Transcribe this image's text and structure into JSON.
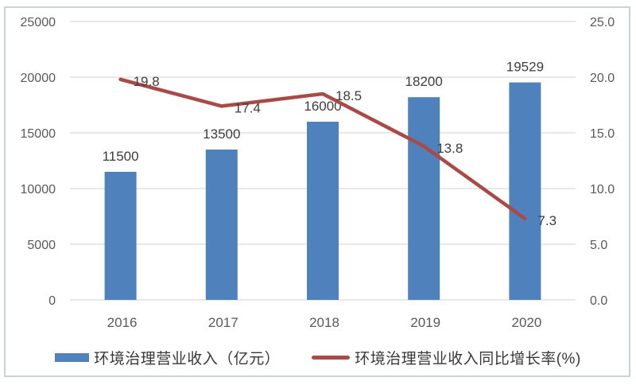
{
  "chart_data": {
    "type": "combo",
    "title": "",
    "categories": [
      "2016",
      "2017",
      "2018",
      "2019",
      "2020"
    ],
    "series": [
      {
        "name": "环境治理营业收入（亿元）",
        "type": "bar",
        "axis": "left",
        "color": "#4f81bd",
        "values": [
          11500,
          13500,
          16000,
          18200,
          19529
        ],
        "labels": [
          "11500",
          "13500",
          "16000",
          "18200",
          "19529"
        ]
      },
      {
        "name": "环境治理营业收入同比增长率(%)",
        "type": "line",
        "axis": "right",
        "color": "#aa4a47",
        "values": [
          19.8,
          17.4,
          18.5,
          13.8,
          7.3
        ],
        "labels": [
          "19.8",
          "17.4",
          "18.5",
          "13.8",
          "7.3"
        ]
      }
    ],
    "left_axis": {
      "min": 0,
      "max": 25000,
      "step": 5000,
      "tick_labels": [
        "0",
        "5000",
        "10000",
        "15000",
        "20000",
        "25000"
      ]
    },
    "right_axis": {
      "min": 0,
      "max": 25,
      "step": 5,
      "tick_labels": [
        "0.0",
        "5.0",
        "10.0",
        "15.0",
        "20.0",
        "25.0"
      ]
    },
    "grid": true,
    "legend_position": "bottom"
  },
  "style": {
    "bar_color": "#4f81bd",
    "line_color": "#aa4a47",
    "grid_color": "#d9d9d9",
    "axis_text_color": "#595959",
    "data_label_color": "#3d3d3d",
    "legend_text_color": "#383838",
    "frame_border_color": "#ccd1d5"
  }
}
